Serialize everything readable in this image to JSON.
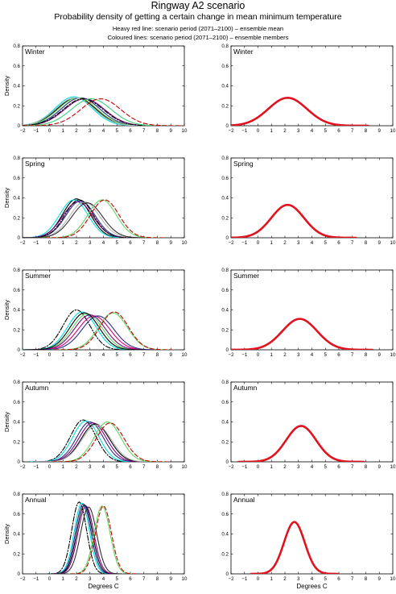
{
  "header": {
    "title": "Ringway A2 scenario",
    "subtitle": "Probability density of getting a certain change in mean minimum temperature",
    "legend_line_1": "Heavy red line: scenario period (2071–2100) – ensemble mean",
    "legend_line_2": "Coloured lines: scenario period (2071–2100) – ensemble members"
  },
  "colors": {
    "ensemble_mean": "#e0131f",
    "members": [
      "#000000",
      "#00e0e0",
      "#2d2d8a",
      "#5fd65f",
      "#800080",
      "#b4b4b4",
      "#d4007a",
      "#303030",
      "#3ad17a"
    ],
    "dashed_member_red": "#c80000"
  },
  "chart_data": [
    {
      "type": "line",
      "panel": "members",
      "label": "Winter",
      "ylabel": "Density",
      "xlabel": "",
      "xlim": [
        -2,
        10
      ],
      "ylim": [
        0,
        0.8
      ],
      "xticks": [
        -2,
        -1,
        0,
        1,
        2,
        3,
        4,
        5,
        6,
        7,
        8,
        9,
        10
      ],
      "yticks": [
        0,
        0.2,
        0.4,
        0.6,
        0.8
      ],
      "series": [
        {
          "mean": 2.0,
          "peak": 0.28,
          "color": "#000000",
          "style": "solid"
        },
        {
          "mean": 1.8,
          "peak": 0.29,
          "color": "#00e0e0",
          "style": "solid"
        },
        {
          "mean": 2.3,
          "peak": 0.28,
          "color": "#2d2d8a",
          "style": "solid"
        },
        {
          "mean": 2.1,
          "peak": 0.28,
          "color": "#5fd65f",
          "style": "solid"
        },
        {
          "mean": 2.6,
          "peak": 0.27,
          "color": "#800080",
          "style": "solid"
        },
        {
          "mean": 1.9,
          "peak": 0.28,
          "color": "#b4b4b4",
          "style": "solid"
        },
        {
          "mean": 2.5,
          "peak": 0.27,
          "color": "#000000",
          "style": "dashdot"
        },
        {
          "mean": 3.1,
          "peak": 0.27,
          "color": "#3ad17a",
          "style": "solid"
        },
        {
          "mean": 3.8,
          "peak": 0.27,
          "color": "#c80000",
          "style": "dashed"
        }
      ]
    },
    {
      "type": "line",
      "panel": "ensemble_mean",
      "label": "Winter",
      "ylabel": "",
      "xlabel": "",
      "xlim": [
        -2,
        10
      ],
      "ylim": [
        0,
        0.8
      ],
      "xticks": [
        -2,
        -1,
        0,
        1,
        2,
        3,
        4,
        5,
        6,
        7,
        8,
        9,
        10
      ],
      "yticks": [
        0,
        0.2,
        0.4,
        0.6,
        0.8
      ],
      "series": [
        {
          "mean": 2.2,
          "peak": 0.28,
          "color": "#e0131f",
          "style": "heavy"
        }
      ]
    },
    {
      "type": "line",
      "panel": "members",
      "label": "Spring",
      "ylabel": "Density",
      "xlabel": "",
      "xlim": [
        -2,
        10
      ],
      "ylim": [
        0,
        0.8
      ],
      "xticks": [
        -2,
        -1,
        0,
        1,
        2,
        3,
        4,
        5,
        6,
        7,
        8,
        9,
        10
      ],
      "yticks": [
        0,
        0.2,
        0.4,
        0.6,
        0.8
      ],
      "series": [
        {
          "mean": 2.0,
          "peak": 0.39,
          "color": "#000000",
          "style": "solid"
        },
        {
          "mean": 1.8,
          "peak": 0.38,
          "color": "#00e0e0",
          "style": "solid"
        },
        {
          "mean": 2.3,
          "peak": 0.37,
          "color": "#2d2d8a",
          "style": "solid"
        },
        {
          "mean": 2.1,
          "peak": 0.36,
          "color": "#800080",
          "style": "solid"
        },
        {
          "mean": 2.6,
          "peak": 0.36,
          "color": "#b4b4b4",
          "style": "solid"
        },
        {
          "mean": 2.2,
          "peak": 0.38,
          "color": "#000000",
          "style": "dashdot"
        },
        {
          "mean": 2.8,
          "peak": 0.35,
          "color": "#303030",
          "style": "solid"
        },
        {
          "mean": 3.9,
          "peak": 0.38,
          "color": "#5fd65f",
          "style": "solid"
        },
        {
          "mean": 4.1,
          "peak": 0.38,
          "color": "#c80000",
          "style": "dashed"
        }
      ]
    },
    {
      "type": "line",
      "panel": "ensemble_mean",
      "label": "Spring",
      "ylabel": "",
      "xlabel": "",
      "xlim": [
        -2,
        10
      ],
      "ylim": [
        0,
        0.8
      ],
      "xticks": [
        -2,
        -1,
        0,
        1,
        2,
        3,
        4,
        5,
        6,
        7,
        8,
        9,
        10
      ],
      "yticks": [
        0,
        0.2,
        0.4,
        0.6,
        0.8
      ],
      "series": [
        {
          "mean": 2.2,
          "peak": 0.33,
          "color": "#e0131f",
          "style": "heavy"
        }
      ]
    },
    {
      "type": "line",
      "panel": "members",
      "label": "Summer",
      "ylabel": "Density",
      "xlabel": "",
      "xlim": [
        -2,
        10
      ],
      "ylim": [
        0,
        0.8
      ],
      "xticks": [
        -2,
        -1,
        0,
        1,
        2,
        3,
        4,
        5,
        6,
        7,
        8,
        9,
        10
      ],
      "yticks": [
        0,
        0.2,
        0.4,
        0.6,
        0.8
      ],
      "series": [
        {
          "mean": 2.0,
          "peak": 0.4,
          "color": "#000000",
          "style": "dashdot"
        },
        {
          "mean": 2.4,
          "peak": 0.38,
          "color": "#00e0e0",
          "style": "solid"
        },
        {
          "mean": 2.8,
          "peak": 0.36,
          "color": "#5fd65f",
          "style": "solid"
        },
        {
          "mean": 3.0,
          "peak": 0.35,
          "color": "#800080",
          "style": "solid"
        },
        {
          "mean": 3.3,
          "peak": 0.34,
          "color": "#d4007a",
          "style": "solid"
        },
        {
          "mean": 3.6,
          "peak": 0.34,
          "color": "#2d2d8a",
          "style": "solid"
        },
        {
          "mean": 2.6,
          "peak": 0.37,
          "color": "#000000",
          "style": "solid"
        },
        {
          "mean": 4.7,
          "peak": 0.37,
          "color": "#5fd65f",
          "style": "solid"
        },
        {
          "mean": 4.8,
          "peak": 0.38,
          "color": "#c80000",
          "style": "dashed"
        }
      ]
    },
    {
      "type": "line",
      "panel": "ensemble_mean",
      "label": "Summer",
      "ylabel": "",
      "xlabel": "",
      "xlim": [
        -2,
        10
      ],
      "ylim": [
        0,
        0.8
      ],
      "xticks": [
        -2,
        -1,
        0,
        1,
        2,
        3,
        4,
        5,
        6,
        7,
        8,
        9,
        10
      ],
      "yticks": [
        0,
        0.2,
        0.4,
        0.6,
        0.8
      ],
      "series": [
        {
          "mean": 3.1,
          "peak": 0.31,
          "color": "#e0131f",
          "style": "heavy"
        }
      ]
    },
    {
      "type": "line",
      "panel": "members",
      "label": "Autumn",
      "ylabel": "Density",
      "xlabel": "",
      "xlim": [
        -2,
        10
      ],
      "ylim": [
        0,
        0.8
      ],
      "xticks": [
        -2,
        -1,
        0,
        1,
        2,
        3,
        4,
        5,
        6,
        7,
        8,
        9,
        10
      ],
      "yticks": [
        0,
        0.2,
        0.4,
        0.6,
        0.8
      ],
      "series": [
        {
          "mean": 2.5,
          "peak": 0.42,
          "color": "#000000",
          "style": "dashdot"
        },
        {
          "mean": 2.7,
          "peak": 0.41,
          "color": "#00e0e0",
          "style": "solid"
        },
        {
          "mean": 3.0,
          "peak": 0.4,
          "color": "#2d2d8a",
          "style": "solid"
        },
        {
          "mean": 3.2,
          "peak": 0.39,
          "color": "#800080",
          "style": "solid"
        },
        {
          "mean": 3.4,
          "peak": 0.38,
          "color": "#000000",
          "style": "solid"
        },
        {
          "mean": 3.5,
          "peak": 0.37,
          "color": "#b4b4b4",
          "style": "solid"
        },
        {
          "mean": 4.3,
          "peak": 0.4,
          "color": "#5fd65f",
          "style": "solid"
        },
        {
          "mean": 4.5,
          "peak": 0.39,
          "color": "#c80000",
          "style": "dashed"
        }
      ]
    },
    {
      "type": "line",
      "panel": "ensemble_mean",
      "label": "Autumn",
      "ylabel": "",
      "xlabel": "",
      "xlim": [
        -2,
        10
      ],
      "ylim": [
        0,
        0.8
      ],
      "xticks": [
        -2,
        -1,
        0,
        1,
        2,
        3,
        4,
        5,
        6,
        7,
        8,
        9,
        10
      ],
      "yticks": [
        0,
        0.2,
        0.4,
        0.6,
        0.8
      ],
      "series": [
        {
          "mean": 3.2,
          "peak": 0.36,
          "color": "#e0131f",
          "style": "heavy"
        }
      ]
    },
    {
      "type": "line",
      "panel": "members",
      "label": "Annual",
      "ylabel": "Density",
      "xlabel": "Degrees C",
      "xlim": [
        -2,
        10
      ],
      "ylim": [
        0,
        0.8
      ],
      "xticks": [
        -2,
        -1,
        0,
        1,
        2,
        3,
        4,
        5,
        6,
        7,
        8,
        9,
        10
      ],
      "yticks": [
        0,
        0.2,
        0.4,
        0.6,
        0.8
      ],
      "series": [
        {
          "mean": 2.2,
          "peak": 0.72,
          "color": "#000000",
          "style": "dashdot"
        },
        {
          "mean": 2.4,
          "peak": 0.71,
          "color": "#00e0e0",
          "style": "solid"
        },
        {
          "mean": 2.5,
          "peak": 0.7,
          "color": "#2d2d8a",
          "style": "solid"
        },
        {
          "mean": 2.6,
          "peak": 0.69,
          "color": "#000000",
          "style": "solid"
        },
        {
          "mean": 2.7,
          "peak": 0.68,
          "color": "#800080",
          "style": "solid"
        },
        {
          "mean": 2.9,
          "peak": 0.67,
          "color": "#303030",
          "style": "solid"
        },
        {
          "mean": 3.9,
          "peak": 0.68,
          "color": "#5fd65f",
          "style": "solid"
        },
        {
          "mean": 4.0,
          "peak": 0.68,
          "color": "#c80000",
          "style": "dashed"
        }
      ]
    },
    {
      "type": "line",
      "panel": "ensemble_mean",
      "label": "Annual",
      "ylabel": "",
      "xlabel": "Degrees C",
      "xlim": [
        -2,
        10
      ],
      "ylim": [
        0,
        0.8
      ],
      "xticks": [
        -2,
        -1,
        0,
        1,
        2,
        3,
        4,
        5,
        6,
        7,
        8,
        9,
        10
      ],
      "yticks": [
        0,
        0.2,
        0.4,
        0.6,
        0.8
      ],
      "series": [
        {
          "mean": 2.7,
          "peak": 0.52,
          "color": "#e0131f",
          "style": "heavy"
        }
      ]
    }
  ]
}
